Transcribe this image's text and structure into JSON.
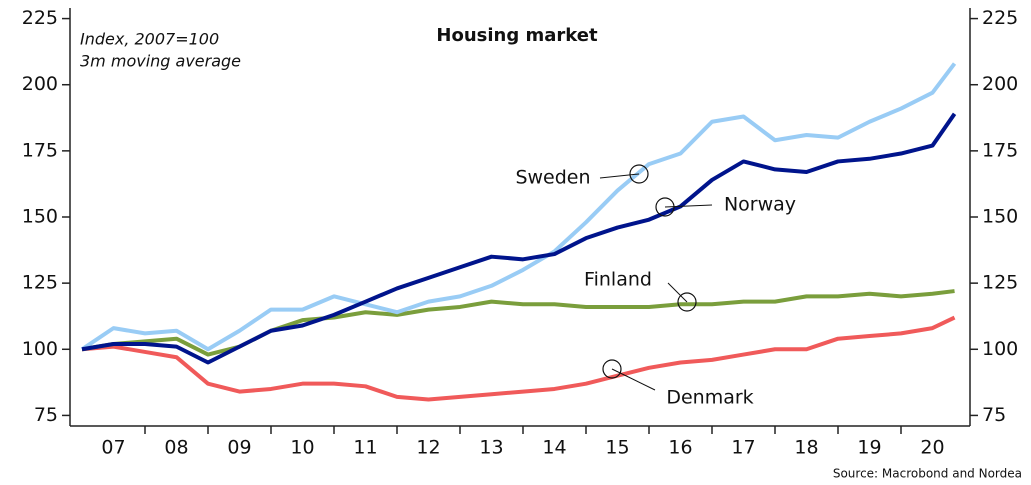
{
  "chart_data": {
    "type": "line",
    "title": "Housing market",
    "subtitle": [
      "Index, 2007=100",
      "3m moving average"
    ],
    "source": "Source: Macrobond and Nordea",
    "x": [
      2007.0,
      2007.5,
      2008.0,
      2008.5,
      2009.0,
      2009.5,
      2010.0,
      2010.5,
      2011.0,
      2011.5,
      2012.0,
      2012.5,
      2013.0,
      2013.5,
      2014.0,
      2014.5,
      2015.0,
      2015.5,
      2016.0,
      2016.5,
      2017.0,
      2017.5,
      2018.0,
      2018.5,
      2019.0,
      2019.5,
      2020.0,
      2020.5,
      2020.85
    ],
    "xlim": [
      2007,
      2021
    ],
    "xticks": [
      {
        "value": 2007.5,
        "label": "07"
      },
      {
        "value": 2008.5,
        "label": "08"
      },
      {
        "value": 2009.5,
        "label": "09"
      },
      {
        "value": 2010.5,
        "label": "10"
      },
      {
        "value": 2011.5,
        "label": "11"
      },
      {
        "value": 2012.5,
        "label": "12"
      },
      {
        "value": 2013.5,
        "label": "13"
      },
      {
        "value": 2014.5,
        "label": "14"
      },
      {
        "value": 2015.5,
        "label": "15"
      },
      {
        "value": 2016.5,
        "label": "16"
      },
      {
        "value": 2017.5,
        "label": "17"
      },
      {
        "value": 2018.5,
        "label": "18"
      },
      {
        "value": 2019.5,
        "label": "19"
      },
      {
        "value": 2020.5,
        "label": "20"
      }
    ],
    "ylim": [
      71,
      229
    ],
    "yticks": [
      75,
      100,
      125,
      150,
      175,
      200,
      225
    ],
    "y2lim": [
      71,
      229
    ],
    "y2ticks": [
      75,
      100,
      125,
      150,
      175,
      200,
      225
    ],
    "series": [
      {
        "name": "Sweden",
        "color": "#99ccf5",
        "values": [
          100,
          108,
          106,
          107,
          100,
          107,
          115,
          115,
          120,
          117,
          114,
          118,
          120,
          124,
          130,
          137,
          148,
          160,
          170,
          174,
          186,
          188,
          179,
          181,
          180,
          186,
          191,
          197,
          208
        ]
      },
      {
        "name": "Norway",
        "color": "#00148c",
        "values": [
          100,
          102,
          102,
          101,
          95,
          101,
          107,
          109,
          113,
          118,
          123,
          127,
          131,
          135,
          134,
          136,
          142,
          146,
          149,
          154,
          164,
          171,
          168,
          167,
          171,
          172,
          174,
          177,
          189
        ]
      },
      {
        "name": "Finland",
        "color": "#7a9e3c",
        "values": [
          100,
          102,
          103,
          104,
          98,
          101,
          107,
          111,
          112,
          114,
          113,
          115,
          116,
          118,
          117,
          117,
          116,
          116,
          116,
          117,
          117,
          118,
          118,
          120,
          120,
          121,
          120,
          121,
          122
        ]
      },
      {
        "name": "Denmark",
        "color": "#f05a5a",
        "values": [
          100,
          101,
          99,
          97,
          87,
          84,
          85,
          87,
          87,
          86,
          82,
          81,
          82,
          83,
          84,
          85,
          87,
          90,
          93,
          95,
          96,
          98,
          100,
          100,
          104,
          105,
          106,
          108,
          112
        ]
      }
    ]
  }
}
